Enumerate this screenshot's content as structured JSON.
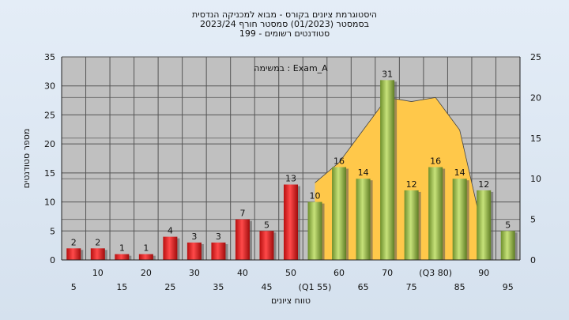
{
  "chart_data": {
    "type": "bar",
    "title_lines": [
      "היסטוגרמת ציונים בקורס - מבוא למכניקה הנדסית",
      "בסמסטר  (01/2023)  סמסטר חורף  2023/24",
      "סטודנטים רשומים - 199"
    ],
    "legend_text": "במשימה : Exam_A",
    "xlabel": "טווח ציונים",
    "ylabel": "מספר סטודנטים",
    "ylim": [
      0,
      35
    ],
    "y_ticks": [
      0,
      5,
      10,
      15,
      20,
      25,
      30,
      35
    ],
    "y2lim": [
      0,
      25
    ],
    "y2_ticks": [
      0,
      5,
      10,
      15,
      20,
      25
    ],
    "categories": [
      "5",
      "10",
      "15",
      "20",
      "25",
      "30",
      "35",
      "40",
      "45",
      "50",
      "(Q1 55)",
      "60",
      "65",
      "70",
      "75",
      "(Q3 80)",
      "85",
      "90",
      "95"
    ],
    "values": [
      2,
      2,
      1,
      1,
      4,
      3,
      3,
      7,
      5,
      13,
      10,
      16,
      14,
      31,
      12,
      16,
      14,
      12,
      5
    ],
    "bar_colors": [
      "red",
      "red",
      "red",
      "red",
      "red",
      "red",
      "red",
      "red",
      "red",
      "red",
      "green",
      "green",
      "green",
      "green",
      "green",
      "green",
      "green",
      "green",
      "green"
    ],
    "data_labels": [
      "2",
      "2",
      "1",
      "1",
      "4",
      "3",
      "3",
      "7",
      "5",
      "13",
      "10",
      "16",
      "14",
      "31",
      "12",
      "16",
      "14",
      "12",
      "5"
    ],
    "area_series": {
      "x_start_index": 10,
      "y2_values": [
        9.5,
        12,
        16,
        20,
        19.5,
        20,
        16,
        3
      ]
    },
    "grid": true,
    "colors": {
      "plot_background": "#c0c0c0",
      "grid": "#555555",
      "area_fill": "#ffc84a",
      "red_bar": "#e02020",
      "green_bar": "#9cc24a"
    }
  }
}
